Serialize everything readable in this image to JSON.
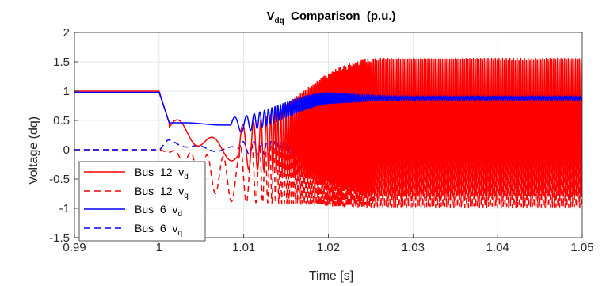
{
  "chart_data": {
    "type": "line",
    "title": {
      "main": "V",
      "sub": "dq",
      "rest": "  Comparison  (p.u.)"
    },
    "xlabel": "Time [s]",
    "ylabel": "Voltage (dq)",
    "xlim": [
      0.99,
      1.05
    ],
    "ylim": [
      -1.5,
      2
    ],
    "xticks": [
      0.99,
      1,
      1.01,
      1.02,
      1.03,
      1.04,
      1.05
    ],
    "xtick_labels": [
      "0.99",
      "1",
      "1.01",
      "1.02",
      "1.03",
      "1.04",
      "1.05"
    ],
    "yticks": [
      -1.5,
      -1,
      -0.5,
      0,
      0.5,
      1,
      1.5,
      2
    ],
    "ytick_labels": [
      "-1.5",
      "-1",
      "-0.5",
      "0",
      "0.5",
      "1",
      "1.5",
      "2"
    ],
    "grid": true,
    "legend_position": "bottom-left",
    "series": [
      {
        "name": "Bus  12  v",
        "sub": "d",
        "color": "#ff0000",
        "dash": "solid"
      },
      {
        "name": "Bus  12  v",
        "sub": "q",
        "color": "#ff0000",
        "dash": "dashed"
      },
      {
        "name": "Bus  6  v",
        "sub": "d",
        "color": "#0000ff",
        "dash": "solid"
      },
      {
        "name": "Bus  6  v",
        "sub": "q",
        "color": "#0000ff",
        "dash": "dashed"
      }
    ]
  }
}
